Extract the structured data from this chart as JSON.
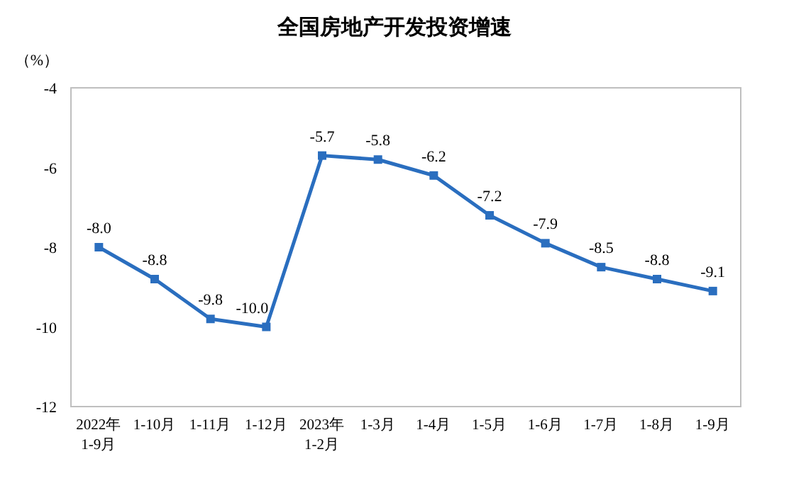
{
  "chart_data": {
    "type": "line",
    "title": "全国房地产开发投资增速",
    "ylabel": "（%）",
    "categories": [
      "2022年\n1-9月",
      "1-10月",
      "1-11月",
      "1-12月",
      "2023年\n1-2月",
      "1-3月",
      "1-4月",
      "1-5月",
      "1-6月",
      "1-7月",
      "1-8月",
      "1-9月"
    ],
    "series": [
      {
        "color": "#2a6ebf",
        "values": [
          -8.0,
          -8.8,
          -9.8,
          -10.0,
          -5.7,
          -5.8,
          -6.2,
          -7.2,
          -7.9,
          -8.5,
          -8.8,
          -9.1
        ],
        "value_labels": [
          "-8.0",
          "-8.8",
          "-9.8",
          "-10.0",
          "-5.7",
          "-5.8",
          "-6.2",
          "-7.2",
          "-7.9",
          "-8.5",
          "-8.8",
          "-9.1"
        ]
      }
    ],
    "ylim": [
      -12,
      -4
    ],
    "yticks": [
      -12,
      -10,
      -8,
      -6,
      -4
    ],
    "marker": "square",
    "line_style": "solid",
    "grid": false
  }
}
